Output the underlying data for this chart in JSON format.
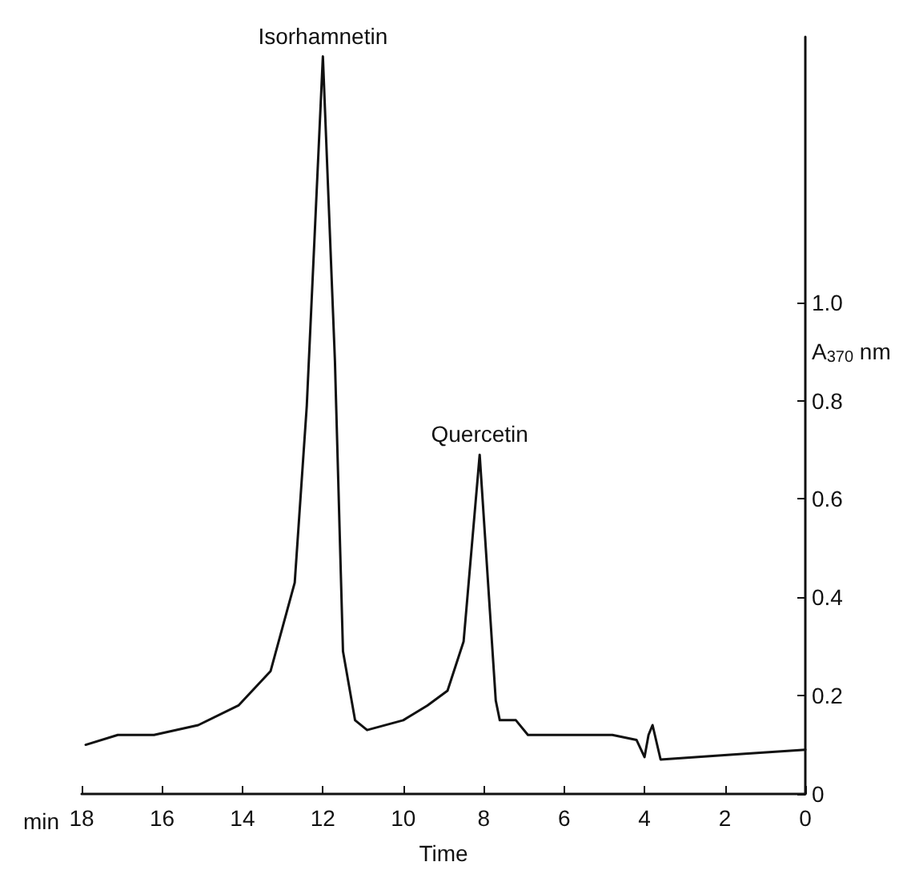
{
  "chart_data": {
    "type": "line",
    "xlabel": "Time",
    "ylabel": "A$_{370}$ nm",
    "annotations": [
      {
        "text": "Isorhamnetin",
        "x": 12,
        "y": 1.5
      },
      {
        "text": "Quercetin",
        "x": 8.1,
        "y": 0.69
      },
      "min"
    ],
    "x": [
      17.9,
      17.1,
      16.2,
      15.1,
      14.1,
      13.3,
      12.7,
      12.4,
      12.0,
      11.7,
      11.5,
      11.2,
      10.9,
      10.0,
      9.4,
      8.9,
      8.5,
      8.1,
      7.7,
      7.6,
      7.2,
      6.9,
      4.8,
      4.2,
      4.0,
      3.9,
      3.8,
      3.6,
      1.8,
      0.0
    ],
    "series": [
      {
        "color": "#111111",
        "values": [
          0.1,
          0.12,
          0.12,
          0.14,
          0.18,
          0.25,
          0.43,
          0.79,
          1.5,
          0.88,
          0.29,
          0.15,
          0.13,
          0.15,
          0.18,
          0.21,
          0.31,
          0.69,
          0.19,
          0.15,
          0.15,
          0.12,
          0.12,
          0.11,
          0.075,
          0.12,
          0.14,
          0.07,
          0.08,
          0.09
        ]
      }
    ],
    "xlim": [
      18,
      0
    ],
    "xticks": [
      18,
      16,
      14,
      12,
      10,
      8,
      6,
      4,
      2,
      0
    ],
    "ylim": [
      0,
      1.54
    ],
    "yticks": [
      0,
      0.2,
      0.4,
      0.6,
      0.8,
      {
        "value": 1,
        "label": "1.0"
      }
    ],
    "grid": false,
    "marker": "none",
    "line_style": "solid"
  }
}
